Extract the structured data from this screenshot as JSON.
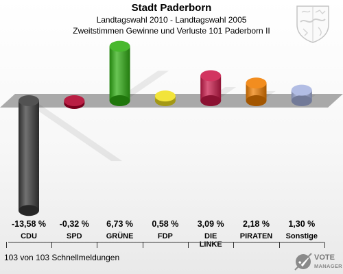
{
  "header": {
    "title": "Stadt Paderborn",
    "line1": "Landtagswahl 2010 - Landtagswahl 2005",
    "line2": "Zweitstimmen Gewinne und Verluste 101 Paderborn II"
  },
  "footer": {
    "note": "103 von 103 Schnellmeldungen"
  },
  "logo": {
    "line1": "VOTE",
    "line2": "MANAGER"
  },
  "chart_data": {
    "type": "bar",
    "categories": [
      "CDU",
      "SPD",
      "GRÜNE",
      "FDP",
      "DIE LINKE",
      "PIRATEN",
      "Sonstige"
    ],
    "category_lines": [
      [
        "CDU"
      ],
      [
        "SPD"
      ],
      [
        "GRÜNE"
      ],
      [
        "FDP"
      ],
      [
        "DIE",
        "LINKE"
      ],
      [
        "PIRATEN"
      ],
      [
        "Sonstige"
      ]
    ],
    "values": [
      -13.58,
      -0.32,
      6.73,
      0.58,
      3.09,
      2.18,
      1.3
    ],
    "value_labels": [
      "-13,58 %",
      "-0,32 %",
      "6,73 %",
      "0,58 %",
      "3,09 %",
      "2,18 %",
      "1,30 %"
    ],
    "colors": [
      "#3a3a3a",
      "#b0002a",
      "#2fae12",
      "#f0e020",
      "#cc1a4a",
      "#f07e00",
      "#a8b4e0"
    ]
  }
}
